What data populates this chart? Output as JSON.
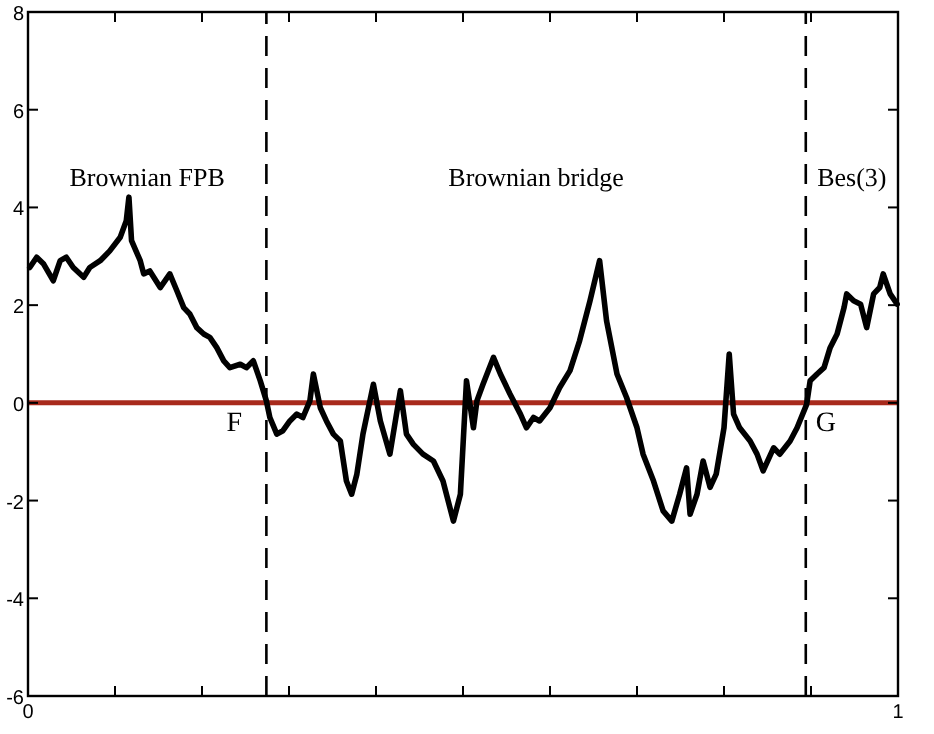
{
  "chart_data": {
    "type": "line",
    "xlim": [
      0,
      1
    ],
    "ylim": [
      -6,
      8
    ],
    "xticks": [
      0,
      {
        "value": 0.1,
        "label": null
      },
      {
        "value": 0.2,
        "label": null
      },
      {
        "value": 0.3,
        "label": null
      },
      {
        "value": 0.4,
        "label": null
      },
      {
        "value": 0.5,
        "label": null
      },
      {
        "value": 0.6,
        "label": null
      },
      {
        "value": 0.7,
        "label": null
      },
      {
        "value": 0.8,
        "label": null
      },
      {
        "value": 0.9,
        "label": null
      },
      1
    ],
    "yticks": [
      -6,
      -4,
      -2,
      0,
      2,
      4,
      6,
      8
    ],
    "grid": false,
    "marker": "none",
    "line_style": "solid",
    "series": [
      {
        "color": "#000000",
        "x": [
          0.002,
          0.01,
          0.018,
          0.029,
          0.037,
          0.044,
          0.052,
          0.064,
          0.071,
          0.083,
          0.094,
          0.106,
          0.113,
          0.116,
          0.119,
          0.129,
          0.133,
          0.14,
          0.152,
          0.163,
          0.171,
          0.179,
          0.186,
          0.194,
          0.202,
          0.209,
          0.217,
          0.225,
          0.232,
          0.244,
          0.251,
          0.259,
          0.267,
          0.274,
          0.278,
          0.286,
          0.293,
          0.301,
          0.309,
          0.316,
          0.324,
          0.328,
          0.336,
          0.343,
          0.351,
          0.359,
          0.366,
          0.372,
          0.378,
          0.385,
          0.397,
          0.405,
          0.416,
          0.428,
          0.435,
          0.443,
          0.454,
          0.466,
          0.477,
          0.489,
          0.497,
          0.504,
          0.512,
          0.516,
          0.523,
          0.535,
          0.543,
          0.554,
          0.566,
          0.573,
          0.581,
          0.588,
          0.6,
          0.611,
          0.623,
          0.634,
          0.646,
          0.657,
          0.665,
          0.677,
          0.688,
          0.7,
          0.707,
          0.719,
          0.73,
          0.74,
          0.749,
          0.757,
          0.761,
          0.769,
          0.776,
          0.784,
          0.791,
          0.8,
          0.806,
          0.811,
          0.818,
          0.83,
          0.838,
          0.845,
          0.857,
          0.864,
          0.876,
          0.884,
          0.895,
          0.899,
          0.907,
          0.915,
          0.922,
          0.93,
          0.938,
          0.941,
          0.949,
          0.957,
          0.964,
          0.972,
          0.979,
          0.983,
          0.991,
          0.999
        ],
        "values": [
          2.77,
          2.98,
          2.84,
          2.5,
          2.91,
          2.98,
          2.77,
          2.57,
          2.77,
          2.91,
          3.11,
          3.39,
          3.73,
          4.21,
          3.32,
          2.91,
          2.64,
          2.7,
          2.36,
          2.64,
          2.3,
          1.95,
          1.82,
          1.54,
          1.41,
          1.34,
          1.13,
          0.86,
          0.72,
          0.79,
          0.72,
          0.86,
          0.45,
          0.04,
          -0.3,
          -0.64,
          -0.57,
          -0.37,
          -0.23,
          -0.3,
          0.04,
          0.59,
          -0.1,
          -0.37,
          -0.64,
          -0.78,
          -1.6,
          -1.87,
          -1.46,
          -0.64,
          0.38,
          -0.37,
          -1.05,
          0.25,
          -0.64,
          -0.85,
          -1.05,
          -1.19,
          -1.6,
          -2.42,
          -1.87,
          0.45,
          -0.51,
          0.04,
          0.38,
          0.93,
          0.59,
          0.18,
          -0.23,
          -0.51,
          -0.3,
          -0.37,
          -0.1,
          0.31,
          0.66,
          1.27,
          2.09,
          2.91,
          1.68,
          0.59,
          0.11,
          -0.51,
          -1.05,
          -1.6,
          -2.21,
          -2.42,
          -1.87,
          -1.33,
          -2.28,
          -1.87,
          -1.19,
          -1.73,
          -1.46,
          -0.51,
          1.0,
          -0.23,
          -0.51,
          -0.78,
          -1.05,
          -1.39,
          -0.92,
          -1.05,
          -0.78,
          -0.51,
          -0.03,
          0.45,
          0.59,
          0.72,
          1.13,
          1.41,
          1.95,
          2.23,
          2.09,
          2.02,
          1.54,
          2.23,
          2.36,
          2.64,
          2.23,
          2.02
        ]
      }
    ],
    "ref_lines": [
      {
        "axis": "y",
        "value": 0,
        "color": "#a82a1c",
        "line_style": "solid"
      },
      {
        "axis": "x",
        "value": 0.274,
        "color": "#000000",
        "line_style": "dashed",
        "label": "F"
      },
      {
        "axis": "x",
        "value": 0.894,
        "color": "#000000",
        "line_style": "dashed",
        "label": "G"
      }
    ],
    "annotations": [
      "Brownian FPB",
      "Brownian bridge",
      "Bes(3)"
    ]
  }
}
